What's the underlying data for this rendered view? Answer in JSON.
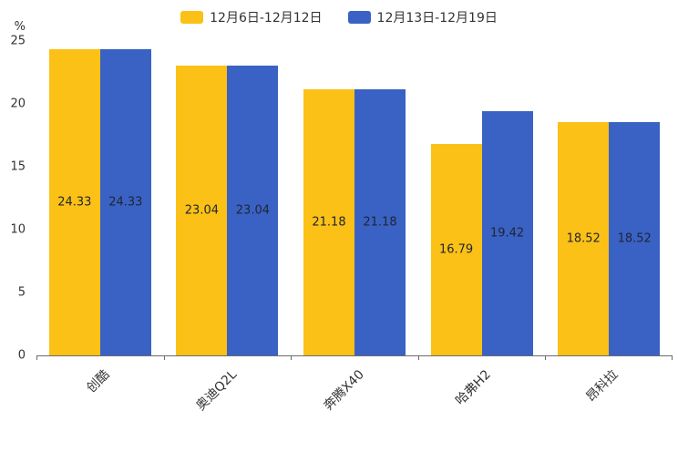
{
  "chart_data": {
    "type": "bar",
    "title": "",
    "ylabel": "%",
    "categories": [
      "创酷",
      "奥迪Q2L",
      "奔腾X40",
      "哈弗H2",
      "昂科拉"
    ],
    "series": [
      {
        "name": "12月6日-12月12日",
        "color": "#FBC116",
        "values": [
          24.33,
          23.04,
          21.18,
          16.79,
          18.52
        ]
      },
      {
        "name": "12月13日-12月19日",
        "color": "#3A62C4",
        "values": [
          24.33,
          23.04,
          21.18,
          19.42,
          18.52
        ]
      }
    ],
    "ylim": [
      0,
      25
    ],
    "yticks": [
      0,
      5,
      10,
      15,
      20,
      25
    ],
    "grid": false,
    "legend_position": "top",
    "value_label_position": "inside-center",
    "label_color": "#1f2533",
    "axis_color": "#6b6b6b"
  }
}
